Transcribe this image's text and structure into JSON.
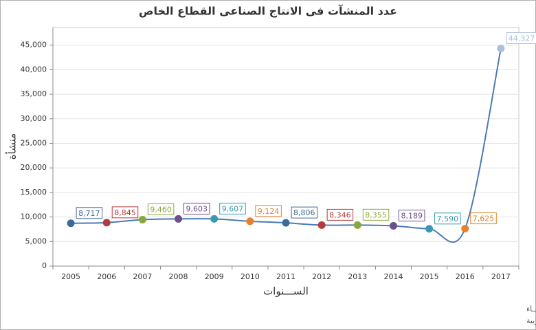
{
  "chart_data": {
    "type": "line",
    "title": "عدد المنشآت فى الانتاج الصناعى  القطاع الخاص",
    "x_label": "الســـنوات",
    "y_label": "منشأة",
    "categories": [
      "2005",
      "2006",
      "2007",
      "2008",
      "2009",
      "2010",
      "2011",
      "2012",
      "2013",
      "2014",
      "2015",
      "2016",
      "2017"
    ],
    "series": [
      {
        "name": "منشأة",
        "color": "#4a7ab5",
        "point_colors": [
          "#3e6a9a",
          "#b23b3b",
          "#8aa63d",
          "#6e4f8e",
          "#3a9ab3",
          "#e8812a",
          "#3e6a9a",
          "#b23b3b",
          "#8aa63d",
          "#6e4f8e",
          "#3a9ab3",
          "#e8812a",
          "#a9bfdc"
        ],
        "values": [
          8717,
          8845,
          9460,
          9603,
          9607,
          9124,
          8806,
          8346,
          8355,
          8189,
          7590,
          7625,
          44327
        ],
        "value_labels": [
          "8,717",
          "8,845",
          "9,460",
          "9,603",
          "9,607",
          "9,124",
          "8,806",
          "8,346",
          "8,355",
          "8,189",
          "7,590",
          "7,625",
          "44,327"
        ]
      }
    ],
    "ylim": [
      0,
      48600
    ],
    "yticks": [
      0,
      {
        "value": 5000,
        "label": "5,000"
      },
      {
        "value": 10000,
        "label": "10,000"
      },
      {
        "value": 15000,
        "label": "15,000"
      },
      {
        "value": 20000,
        "label": "20,000"
      },
      {
        "value": 25000,
        "label": "25,000"
      },
      {
        "value": 30000,
        "label": "30,000"
      },
      {
        "value": 35000,
        "label": "35,000"
      },
      {
        "value": 40000,
        "label": "40,000"
      },
      {
        "value": 45000,
        "label": "45,000"
      }
    ],
    "grid": true,
    "footer": [
      "حقوق الملكية للجهـــاز المركزي للتعبئة العــامة والأحصـــاء",
      "المصدر الأساسي للأحصاءات الرسمية لجمهورية مصر العربية"
    ]
  }
}
